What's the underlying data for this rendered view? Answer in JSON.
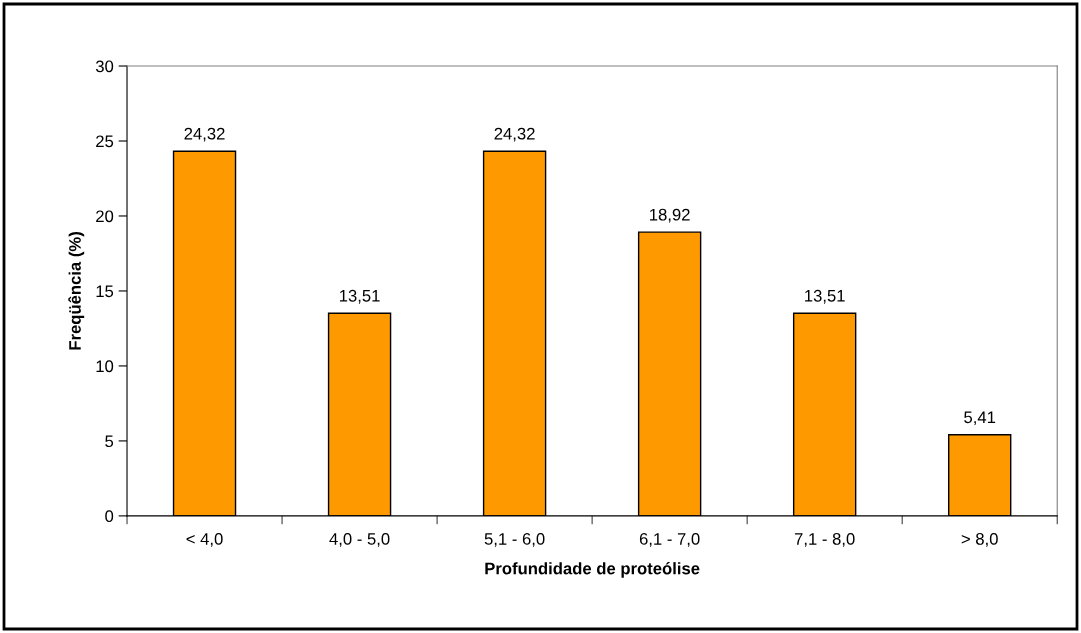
{
  "chart_data": {
    "type": "bar",
    "xlabel": "Profundidade de proteólise",
    "ylabel": "Freqüência (%)",
    "categories": [
      "< 4,0",
      "4,0 - 5,0",
      "5,1 - 6,0",
      "6,1 - 7,0",
      "7,1 - 8,0",
      "> 8,0"
    ],
    "values": [
      24.32,
      13.51,
      24.32,
      18.92,
      13.51,
      5.41
    ],
    "value_labels": [
      "24,32",
      "13,51",
      "24,32",
      "18,92",
      "13,51",
      "5,41"
    ],
    "color": "#ff9900",
    "ylim": [
      0,
      30
    ],
    "yticks": [
      0,
      5,
      10,
      15,
      20,
      25,
      30
    ],
    "grid": false,
    "legend": false
  }
}
